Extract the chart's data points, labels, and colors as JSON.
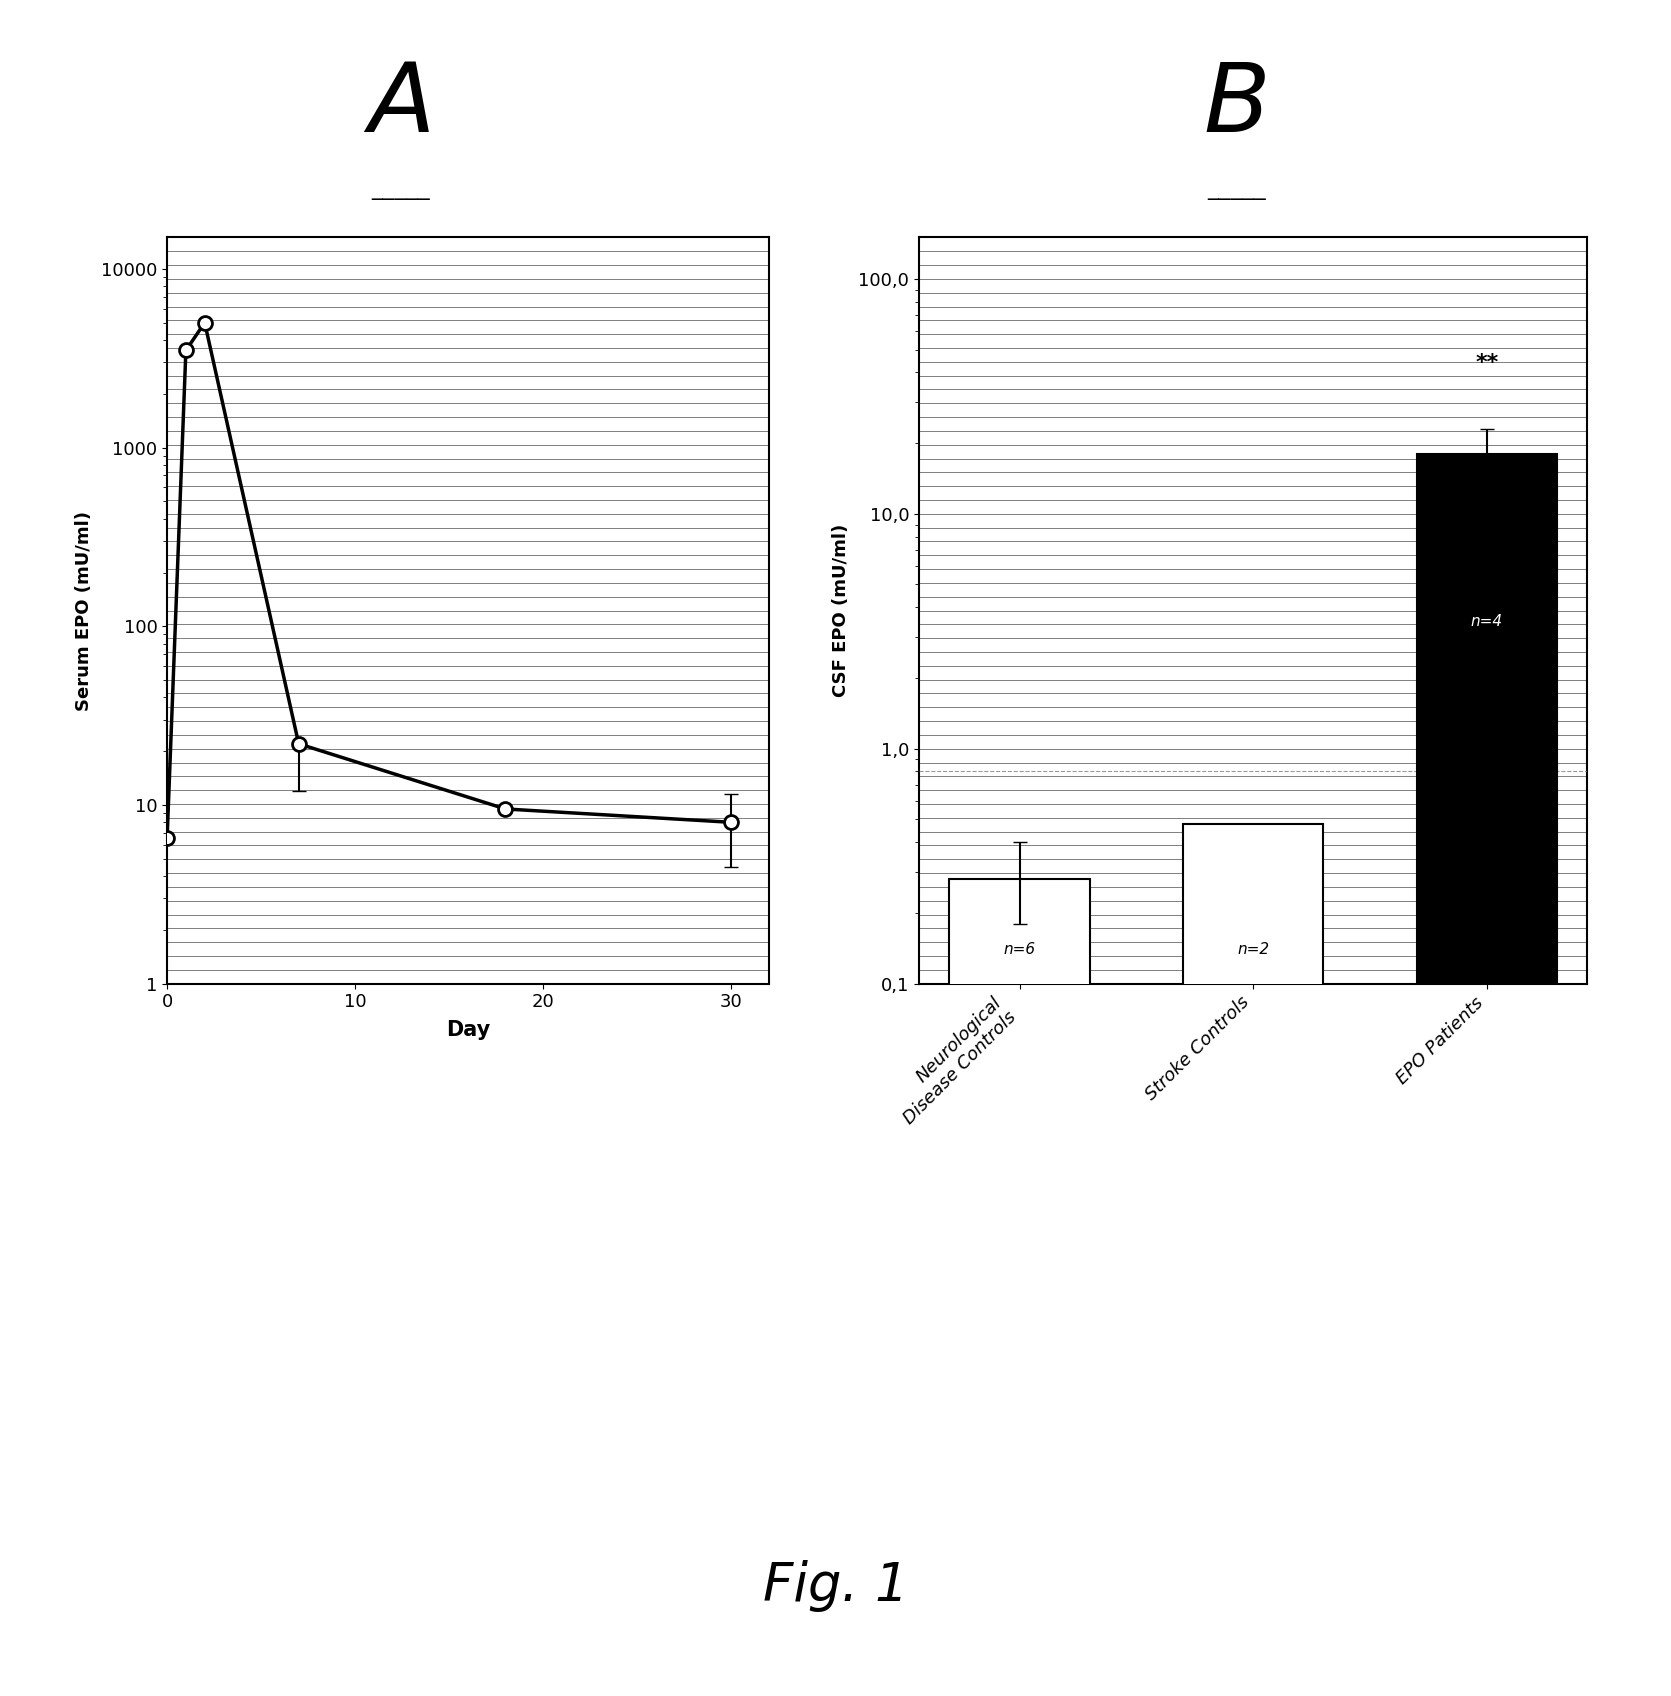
{
  "panel_A": {
    "xlabel": "Day",
    "ylabel": "Serum EPO (mU/ml)",
    "x": [
      0,
      1,
      2,
      7,
      18,
      30
    ],
    "y": [
      6.5,
      3500,
      5000,
      22,
      9.5,
      8.0
    ],
    "yerr_low": [
      0,
      0,
      0,
      10,
      0,
      3.5
    ],
    "yerr_high": [
      0,
      0,
      0,
      0,
      0,
      3.5
    ],
    "ylim_log": [
      1,
      15000
    ],
    "xlim": [
      0,
      32
    ],
    "xticks": [
      0,
      10,
      20,
      30
    ],
    "yticks_major": [
      1,
      10,
      100,
      1000,
      10000
    ],
    "ytick_labels": [
      "1",
      "10",
      "100",
      "1000",
      "10000"
    ],
    "line_color": "black",
    "marker_facecolor": "white",
    "marker_edgecolor": "black",
    "marker_size": 9,
    "n_hlines": 55
  },
  "panel_B": {
    "ylabel": "CSF EPO (mU/ml)",
    "categories": [
      "Neurological\nDisease Controls",
      "Stroke Controls",
      "EPO Patients"
    ],
    "values": [
      0.28,
      0.48,
      18.0
    ],
    "yerr_up": [
      0.12,
      0,
      5.0
    ],
    "yerr_dn": [
      0.1,
      0,
      0
    ],
    "n_labels": [
      "n=6",
      "n=2",
      "n=4"
    ],
    "bar_colors": [
      "white",
      "white",
      "black"
    ],
    "bar_edgecolor": "black",
    "star_annotation": "**",
    "ylim_log": [
      0.1,
      150
    ],
    "yticks_major": [
      0.1,
      1.0,
      10.0,
      100.0
    ],
    "ytick_labels": [
      "0,1",
      "1,0",
      "10,0",
      "100,0"
    ],
    "dashed_line_y": 0.8,
    "n_hlines": 55
  },
  "bg_color": "white"
}
